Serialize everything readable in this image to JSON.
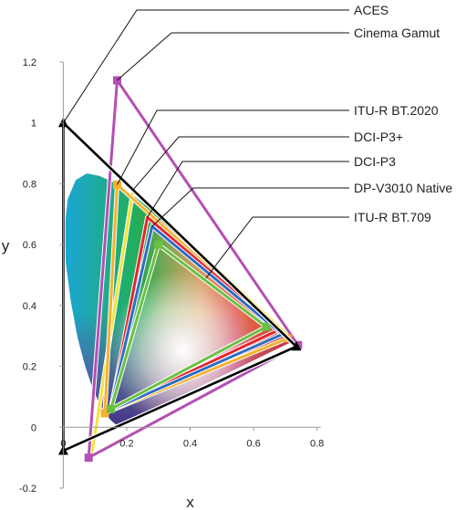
{
  "chart_data": {
    "type": "scatter",
    "title": "",
    "xlabel": "x",
    "ylabel": "y",
    "xlim": [
      -0.05,
      0.85
    ],
    "ylim": [
      -0.2,
      1.2
    ],
    "x_ticks": [
      {
        "value": 0,
        "label": "0"
      },
      {
        "value": 0.2,
        "label": "0.2"
      },
      {
        "value": 0.4,
        "label": "0.4"
      },
      {
        "value": 0.6,
        "label": "0.6"
      },
      {
        "value": 0.8,
        "label": "0.8"
      }
    ],
    "y_ticks": [
      {
        "value": -0.2,
        "label": "-0.2"
      },
      {
        "value": 0,
        "label": "0"
      },
      {
        "value": 0.2,
        "label": "0.2"
      },
      {
        "value": 0.4,
        "label": "0.4"
      },
      {
        "value": 0.6,
        "label": "0.6"
      },
      {
        "value": 0.8,
        "label": "0.8"
      },
      {
        "value": 1,
        "label": "1"
      },
      {
        "value": 1.2,
        "label": "1.2"
      }
    ],
    "grid": false,
    "legend_placement": "right",
    "spectral_locus": [
      [
        0.175,
        0.005
      ],
      [
        0.174,
        0.005
      ],
      [
        0.172,
        0.005
      ],
      [
        0.166,
        0.009
      ],
      [
        0.155,
        0.018
      ],
      [
        0.144,
        0.03
      ],
      [
        0.129,
        0.052
      ],
      [
        0.11,
        0.087
      ],
      [
        0.091,
        0.133
      ],
      [
        0.069,
        0.201
      ],
      [
        0.045,
        0.295
      ],
      [
        0.024,
        0.413
      ],
      [
        0.008,
        0.538
      ],
      [
        0.004,
        0.655
      ],
      [
        0.014,
        0.75
      ],
      [
        0.039,
        0.812
      ],
      [
        0.074,
        0.834
      ],
      [
        0.114,
        0.826
      ],
      [
        0.155,
        0.806
      ],
      [
        0.193,
        0.782
      ],
      [
        0.23,
        0.754
      ],
      [
        0.266,
        0.724
      ],
      [
        0.302,
        0.692
      ],
      [
        0.337,
        0.659
      ],
      [
        0.373,
        0.624
      ],
      [
        0.409,
        0.59
      ],
      [
        0.444,
        0.555
      ],
      [
        0.479,
        0.52
      ],
      [
        0.512,
        0.487
      ],
      [
        0.545,
        0.454
      ],
      [
        0.575,
        0.424
      ],
      [
        0.603,
        0.397
      ],
      [
        0.627,
        0.372
      ],
      [
        0.648,
        0.351
      ],
      [
        0.666,
        0.334
      ],
      [
        0.68,
        0.32
      ],
      [
        0.692,
        0.308
      ],
      [
        0.701,
        0.299
      ],
      [
        0.707,
        0.293
      ],
      [
        0.712,
        0.288
      ],
      [
        0.715,
        0.285
      ],
      [
        0.717,
        0.283
      ],
      [
        0.719,
        0.281
      ],
      [
        0.72,
        0.28
      ],
      [
        0.72,
        0.28
      ],
      [
        0.719,
        0.28
      ]
    ],
    "series": [
      {
        "name": "ACES",
        "color": "#000000",
        "marker": "triangle",
        "points": [
          [
            0.7347,
            0.2653
          ],
          [
            0.0,
            1.0
          ],
          [
            0.0001,
            -0.077
          ]
        ]
      },
      {
        "name": "Cinema Gamut",
        "color": "#b44fb3",
        "marker": "square",
        "points": [
          [
            0.74,
            0.27
          ],
          [
            0.17,
            1.14
          ],
          [
            0.08,
            -0.1
          ]
        ]
      },
      {
        "name": "ITU-R BT.2020",
        "color": "#f7b02e",
        "marker": "square",
        "points": [
          [
            0.708,
            0.292
          ],
          [
            0.17,
            0.797
          ],
          [
            0.131,
            0.046
          ]
        ]
      },
      {
        "name": "DCI-P3+",
        "color": "#f2e23c",
        "marker": "none",
        "points": [
          [
            0.74,
            0.27
          ],
          [
            0.22,
            0.78
          ],
          [
            0.09,
            -0.09
          ]
        ]
      },
      {
        "name": "DCI-P3",
        "color": "#e8232a",
        "marker": "none",
        "points": [
          [
            0.68,
            0.32
          ],
          [
            0.265,
            0.69
          ],
          [
            0.15,
            0.06
          ]
        ]
      },
      {
        "name": "DP-V3010 Native",
        "color": "#2f6cc4",
        "marker": "none",
        "points": [
          [
            0.69,
            0.305
          ],
          [
            0.28,
            0.66
          ],
          [
            0.148,
            0.056
          ]
        ]
      },
      {
        "name": "ITU-R BT.709",
        "color": "#69c042",
        "marker": "square",
        "points": [
          [
            0.64,
            0.33
          ],
          [
            0.3,
            0.6
          ],
          [
            0.15,
            0.06
          ]
        ]
      }
    ]
  }
}
